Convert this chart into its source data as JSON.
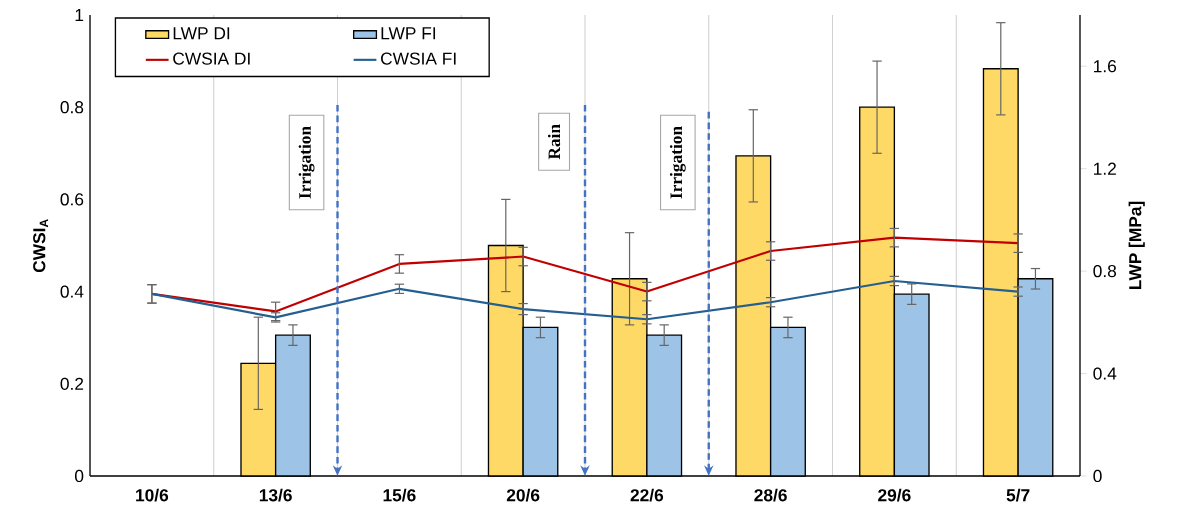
{
  "chart_data": {
    "type": "bar",
    "ylabel": "CWSI$_{A}$",
    "y2label": "LWP [MPa]",
    "categories": [
      "10/6",
      "13/6",
      "15/6",
      "20/6",
      "22/6",
      "28/6",
      "29/6",
      "5/7"
    ],
    "series": [
      {
        "name": "LWP DI",
        "axis": "y2",
        "color": "#ffd966",
        "values": [
          null,
          0.44,
          null,
          0.9,
          0.77,
          1.25,
          1.44,
          1.59
        ],
        "errors": [
          null,
          0.18,
          null,
          0.18,
          0.18,
          0.18,
          0.18,
          0.18
        ]
      },
      {
        "name": "LWP FI",
        "axis": "y2",
        "color": "#9dc3e6",
        "values": [
          null,
          0.55,
          null,
          0.58,
          0.55,
          0.58,
          0.71,
          0.77
        ],
        "errors": [
          null,
          0.04,
          null,
          0.04,
          0.04,
          0.04,
          0.04,
          0.04
        ]
      },
      {
        "name": "CWSIA  DI",
        "type": "line",
        "color": "#c00000",
        "values": [
          0.395,
          0.357,
          0.46,
          0.476,
          0.4,
          0.488,
          0.517,
          0.505
        ],
        "errors": [
          0.02,
          0.02,
          0.02,
          0.02,
          0.02,
          0.02,
          0.02,
          0.02
        ]
      },
      {
        "name": "CWSIA  FI",
        "type": "line",
        "color": "#255e91",
        "values": [
          0.395,
          0.344,
          0.406,
          0.362,
          0.34,
          0.377,
          0.423,
          0.4
        ],
        "errors": [
          0.02,
          0.01,
          0.01,
          0.012,
          0.01,
          0.01,
          0.01,
          0.01
        ]
      }
    ],
    "ylim": [
      0,
      1
    ],
    "yticks": [
      0,
      0.2,
      0.4,
      0.6,
      0.8,
      1
    ],
    "y2lim": [
      0,
      1.8
    ],
    "y2ticks": [
      0,
      0.4,
      0.8,
      1.2,
      1.6
    ],
    "annotations": [
      "Irrigation",
      "Rain",
      "Irrigation"
    ],
    "grid": "x",
    "legend": "top left",
    "marker": "none",
    "line_style": "solid"
  }
}
